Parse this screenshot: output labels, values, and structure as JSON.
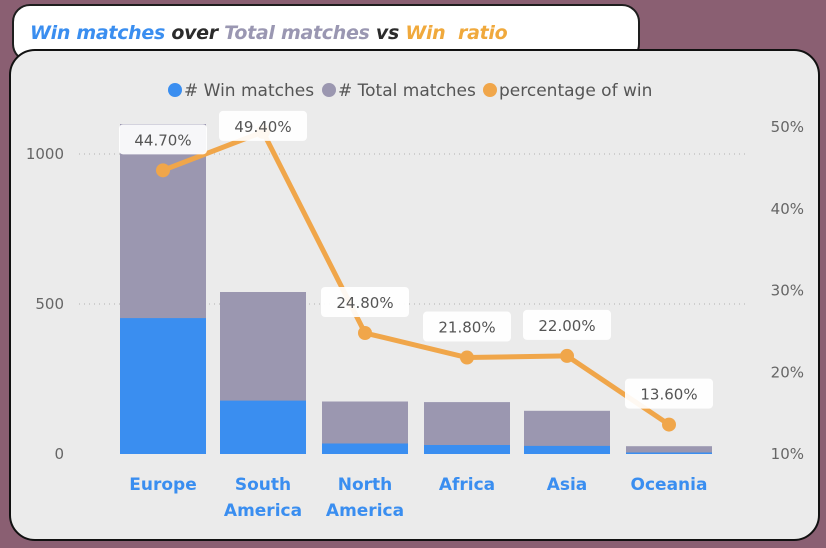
{
  "title": {
    "part1": "Win matches",
    "part2": "over",
    "part3": "Total matches",
    "part4": "vs",
    "part5": "Win  ratio"
  },
  "colors": {
    "win": "#3a8ef0",
    "total": "#9b97b0",
    "percentage": "#f0a64a",
    "category": "#3a8ef0"
  },
  "chart_data": {
    "type": "bar",
    "categories": [
      [
        "Europe"
      ],
      [
        "South",
        "America"
      ],
      [
        "North",
        "America"
      ],
      [
        "Africa"
      ],
      [
        "Asia"
      ],
      [
        "Oceania"
      ]
    ],
    "series": [
      {
        "name": "# Win matches",
        "type": "bar",
        "axis": "left",
        "values": [
          453,
          178,
          35,
          30,
          27,
          5
        ]
      },
      {
        "name": "# Total matches",
        "type": "bar",
        "axis": "left",
        "values": [
          1100,
          540,
          175,
          173,
          144,
          26
        ]
      },
      {
        "name": "percentage of win",
        "type": "line",
        "axis": "right",
        "values": [
          44.7,
          49.4,
          24.8,
          21.8,
          22.0,
          13.6
        ]
      }
    ],
    "data_labels": [
      "44.70%",
      "49.40%",
      "24.80%",
      "21.80%",
      "22.00%",
      "13.60%"
    ],
    "y_left": {
      "ticks": [
        0,
        500,
        1000
      ],
      "ylim": [
        0,
        1000
      ]
    },
    "y_right": {
      "ticks": [
        "10%",
        "20%",
        "30%",
        "40%",
        "50%"
      ],
      "ylim": [
        10,
        50
      ]
    },
    "grid": true,
    "legend": "top-center"
  }
}
